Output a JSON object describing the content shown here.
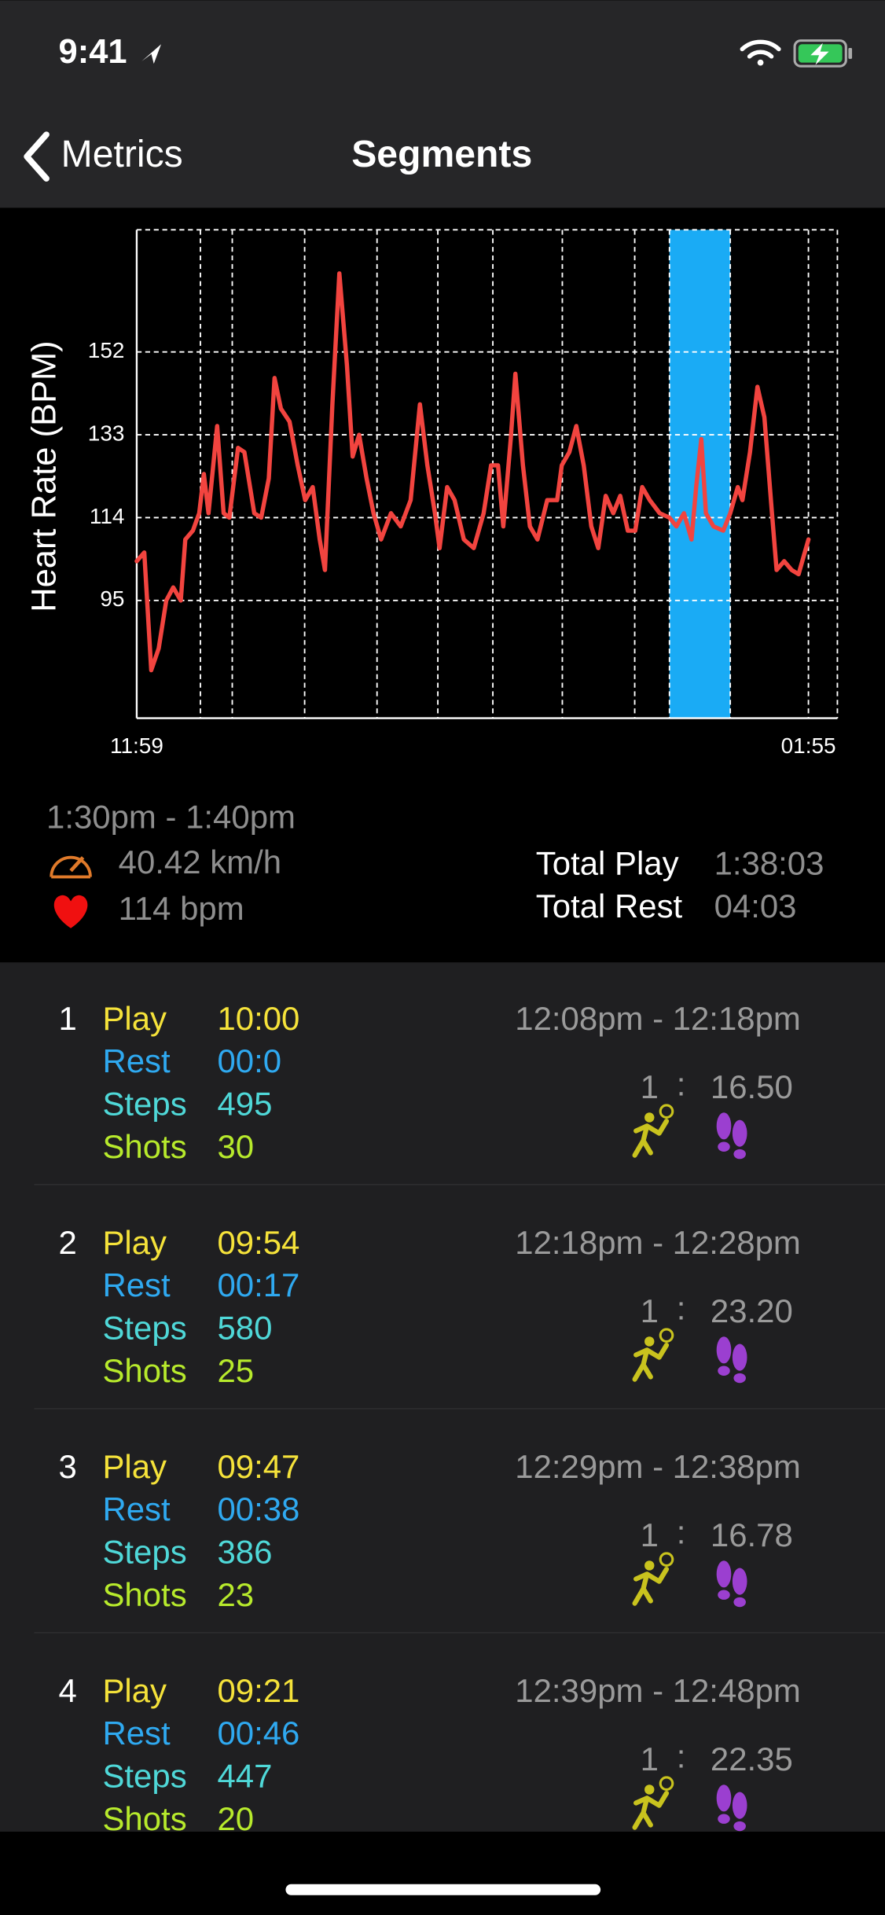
{
  "status_bar": {
    "time": "9:41"
  },
  "nav": {
    "back": "Metrics",
    "title": "Segments"
  },
  "chart_data": {
    "type": "line",
    "y_label": "Heart Rate (BPM)",
    "color": "#f2443f",
    "x": [
      0,
      1.3,
      2.5,
      3.8,
      5.1,
      6.3,
      7.6,
      8.4,
      9.7,
      10.8,
      11.6,
      12.4,
      13.9,
      15,
      16,
      17.5,
      18.6,
      20.3,
      21.5,
      22.8,
      23.8,
      24.9,
      26.4,
      27.8,
      29.1,
      30.4,
      31.6,
      32.5,
      33.8,
      35,
      36.3,
      37.3,
      38.4,
      39.7,
      40.9,
      42.2,
      43.9,
      45.6,
      47.3,
      48.9,
      50.2,
      51.5,
      52.3,
      53.6,
      54.9,
      56.5,
      58.2,
      59.9,
      61.2,
      62.4,
      63.3,
      64.6,
      65.4,
      66.7,
      67.9,
      69.2,
      70.9,
      72.6,
      73.4,
      74.7,
      75.9,
      77.2,
      78.5,
      79.7,
      81,
      82.3,
      83.5,
      84.8,
      86.1,
      87.3,
      88.6,
      90.3,
      92,
      93.2,
      94.5,
      95.8,
      96.6,
      97.5,
      98.3,
      99.6,
      101.3,
      102.5,
      103.8,
      104.6,
      105.9,
      107.2,
      108.4,
      109.7,
      110.5,
      111.8,
      113.1,
      114.3,
      116
    ],
    "values": [
      104,
      106,
      79,
      84,
      95,
      98,
      95,
      109,
      111,
      115,
      124,
      115,
      135,
      115,
      114,
      130,
      129,
      115,
      114,
      123,
      146,
      139,
      136,
      126,
      118,
      121,
      109,
      102,
      140,
      170,
      149,
      128,
      133,
      123,
      115,
      109,
      115,
      112,
      118,
      140,
      126,
      115,
      107,
      121,
      118,
      109,
      107,
      115,
      126,
      126,
      112,
      132,
      147,
      126,
      112,
      109,
      118,
      118,
      126,
      129,
      135,
      126,
      112,
      107,
      119,
      115,
      119,
      111,
      111,
      121,
      118,
      115,
      114,
      112,
      115,
      109,
      121,
      132,
      115,
      112,
      111,
      115,
      121,
      118,
      129,
      144,
      137,
      115,
      102,
      104,
      102,
      101,
      109
    ],
    "xlim": [
      0,
      121
    ],
    "xticks": [
      {
        "value": 0,
        "label": "11:59"
      },
      {
        "value": 116,
        "label": "01:55"
      }
    ],
    "xgrid": [
      11,
      16.5,
      29,
      41.5,
      52,
      61.5,
      73.5,
      86,
      92,
      102.5,
      116
    ],
    "ylim": [
      68,
      180
    ],
    "yticks": [
      95,
      114,
      133,
      152
    ],
    "grid": true,
    "highlight": {
      "range": [
        92,
        102.5
      ],
      "color": "#1aabf5"
    }
  },
  "summary": {
    "range": "1:30pm - 1:40pm",
    "speed": "40.42 km/h",
    "heart": "114 bpm",
    "total_play_label": "Total Play",
    "total_play": "1:38:03",
    "total_rest_label": "Total Rest",
    "total_rest": "04:03"
  },
  "segments": {
    "labels": {
      "play": "Play",
      "rest": "Rest",
      "steps": "Steps",
      "shots": "Shots"
    },
    "items": [
      {
        "index": "1",
        "play": "10:00",
        "rest": "00:0",
        "steps": "495",
        "shots": "30",
        "time": "12:08pm - 12:18pm",
        "ratio_left": "1",
        "ratio_sep": ":",
        "ratio_right": "16.50"
      },
      {
        "index": "2",
        "play": "09:54",
        "rest": "00:17",
        "steps": "580",
        "shots": "25",
        "time": "12:18pm - 12:28pm",
        "ratio_left": "1",
        "ratio_sep": ":",
        "ratio_right": "23.20"
      },
      {
        "index": "3",
        "play": "09:47",
        "rest": "00:38",
        "steps": "386",
        "shots": "23",
        "time": "12:29pm - 12:38pm",
        "ratio_left": "1",
        "ratio_sep": ":",
        "ratio_right": "16.78"
      },
      {
        "index": "4",
        "play": "09:21",
        "rest": "00:46",
        "steps": "447",
        "shots": "20",
        "time": "12:39pm - 12:48pm",
        "ratio_left": "1",
        "ratio_sep": ":",
        "ratio_right": "22.35"
      }
    ]
  }
}
